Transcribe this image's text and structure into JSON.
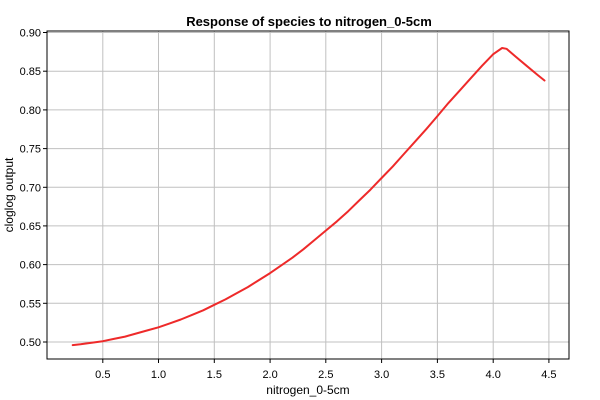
{
  "chart_data": {
    "type": "line",
    "title": "Response of species to nitrogen_0-5cm",
    "xlabel": "nitrogen_0-5cm",
    "ylabel": "cloglog output",
    "xlim": [
      0.0,
      4.68
    ],
    "ylim": [
      0.478,
      0.902
    ],
    "x_ticks": [
      0.5,
      1.0,
      1.5,
      2.0,
      2.5,
      3.0,
      3.5,
      4.0,
      4.5
    ],
    "x_tick_labels": [
      "0.5",
      "1.0",
      "1.5",
      "2.0",
      "2.5",
      "3.0",
      "3.5",
      "4.0",
      "4.5"
    ],
    "y_ticks": [
      0.5,
      0.55,
      0.6,
      0.65,
      0.7,
      0.75,
      0.8,
      0.85,
      0.9
    ],
    "y_tick_labels": [
      "0.50",
      "0.55",
      "0.60",
      "0.65",
      "0.70",
      "0.75",
      "0.80",
      "0.85",
      "0.90"
    ],
    "grid": true,
    "series": [
      {
        "color": "#ee2a2a",
        "x": [
          0.23,
          0.3,
          0.4,
          0.5,
          0.6,
          0.7,
          0.8,
          0.9,
          1.0,
          1.1,
          1.2,
          1.3,
          1.4,
          1.5,
          1.6,
          1.7,
          1.8,
          1.9,
          2.0,
          2.1,
          2.2,
          2.3,
          2.4,
          2.5,
          2.6,
          2.7,
          2.8,
          2.9,
          3.0,
          3.1,
          3.2,
          3.3,
          3.4,
          3.5,
          3.6,
          3.7,
          3.8,
          3.9,
          4.0,
          4.08,
          4.12,
          4.2,
          4.3,
          4.4,
          4.46
        ],
        "y": [
          0.496,
          0.497,
          0.499,
          0.501,
          0.504,
          0.507,
          0.511,
          0.515,
          0.519,
          0.524,
          0.529,
          0.535,
          0.541,
          0.548,
          0.555,
          0.563,
          0.571,
          0.58,
          0.589,
          0.599,
          0.609,
          0.62,
          0.632,
          0.644,
          0.656,
          0.669,
          0.683,
          0.697,
          0.712,
          0.727,
          0.743,
          0.759,
          0.775,
          0.792,
          0.809,
          0.825,
          0.841,
          0.857,
          0.872,
          0.88,
          0.879,
          0.869,
          0.857,
          0.845,
          0.838
        ]
      }
    ]
  }
}
